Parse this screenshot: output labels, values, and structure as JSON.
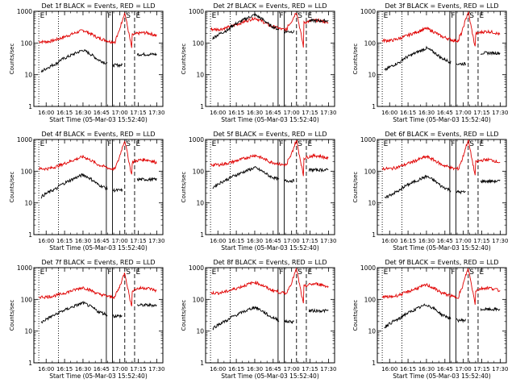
{
  "chart_data": {
    "type": "line",
    "layout": "3x3 grid of small-multiple panels",
    "shared": {
      "xlabel": "Start Time (05-Mar-03 15:52:40)",
      "ylabel": "Counts/sec",
      "yscale": "log",
      "ylim": [
        1,
        1000
      ],
      "yticks": [
        1,
        10,
        100,
        1000
      ],
      "ytick_labels": [
        "1",
        "10",
        "100",
        "1000"
      ],
      "xlim_minutes": [
        -10,
        95
      ],
      "xticks_minutes": [
        0,
        15,
        30,
        45,
        60,
        75,
        90
      ],
      "xtick_labels": [
        "16:00",
        "16:15",
        "16:30",
        "16:45",
        "17:00",
        "17:15",
        "17:30"
      ],
      "series_names": [
        "Events",
        "LLD"
      ],
      "series_colors": [
        "#000000",
        "#e00000"
      ],
      "marker_lines": [
        {
          "time": -6,
          "style": "dotted",
          "label": "E"
        },
        {
          "time": 10,
          "style": "dotted",
          "label": ""
        },
        {
          "time": 49,
          "style": "solid",
          "label": "F"
        },
        {
          "time": 54,
          "style": "solid",
          "label": ""
        },
        {
          "time": 64,
          "style": "dashed",
          "label": "S"
        },
        {
          "time": 72,
          "style": "dashed",
          "label": "E"
        }
      ]
    },
    "panels": [
      {
        "title": "Det 1f BLACK = Events, RED = LLD",
        "lld_base": 110,
        "events_base": 20,
        "bump_factor": 2.3,
        "peak": 900,
        "flat_hump": false
      },
      {
        "title": "Det 2f BLACK = Events, RED = LLD",
        "lld_base": 270,
        "events_base": 230,
        "bump_factor": 2.6,
        "peak": 1000,
        "flat_hump": true
      },
      {
        "title": "Det 3f BLACK = Events, RED = LLD",
        "lld_base": 120,
        "events_base": 22,
        "bump_factor": 2.4,
        "peak": 950,
        "flat_hump": false
      },
      {
        "title": "Det 4f BLACK = Events, RED = LLD",
        "lld_base": 120,
        "events_base": 25,
        "bump_factor": 2.4,
        "peak": 950,
        "flat_hump": false
      },
      {
        "title": "Det 5f BLACK = Events, RED = LLD",
        "lld_base": 160,
        "events_base": 50,
        "bump_factor": 2.0,
        "peak": 950,
        "flat_hump": false
      },
      {
        "title": "Det 6f BLACK = Events, RED = LLD",
        "lld_base": 120,
        "events_base": 22,
        "bump_factor": 2.4,
        "peak": 950,
        "flat_hump": false
      },
      {
        "title": "Det 7f BLACK = Events, RED = LLD",
        "lld_base": 120,
        "events_base": 30,
        "bump_factor": 2.0,
        "peak": 700,
        "flat_hump": false
      },
      {
        "title": "Det 8f BLACK = Events, RED = LLD",
        "lld_base": 160,
        "events_base": 20,
        "bump_factor": 2.2,
        "peak": 900,
        "flat_hump": false
      },
      {
        "title": "Det 9f BLACK = Events, RED = LLD",
        "lld_base": 120,
        "events_base": 22,
        "bump_factor": 2.4,
        "peak": 950,
        "flat_hump": false
      }
    ]
  }
}
